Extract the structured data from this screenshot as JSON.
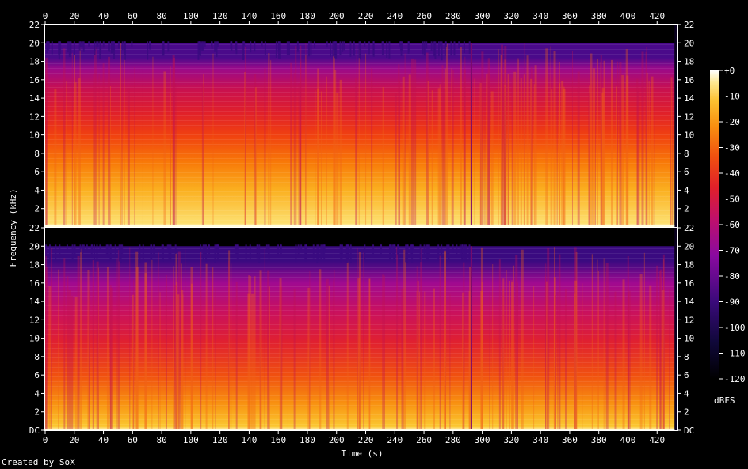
{
  "chart_data": {
    "type": "heatmap",
    "description_type": "spectrogram",
    "xlabel": "Time (s)",
    "ylabel": "Frequency (kHz)",
    "x_ticks": [
      0,
      20,
      40,
      60,
      80,
      100,
      120,
      140,
      160,
      180,
      200,
      220,
      240,
      260,
      280,
      300,
      320,
      340,
      360,
      380,
      400,
      420
    ],
    "xlim": [
      0,
      434
    ],
    "ylim": [
      0,
      22
    ],
    "y_ticks": [
      "DC",
      "2",
      "4",
      "6",
      "8",
      "10",
      "12",
      "14",
      "16",
      "18",
      "20",
      "22"
    ],
    "channels": 2,
    "colorbar": {
      "label": "dBFS",
      "ticks": [
        "+0",
        "-10",
        "-20",
        "-30",
        "-40",
        "-50",
        "-60",
        "-70",
        "-80",
        "-90",
        "-100",
        "-110",
        "-120"
      ],
      "range": [
        -120,
        0
      ],
      "colors": [
        "#000000",
        "#1a0a4a",
        "#4a0a8a",
        "#8a0aa0",
        "#c0106a",
        "#e0202a",
        "#f04010",
        "#f87a08",
        "#fbb020",
        "#fde070",
        "#ffffff"
      ]
    },
    "signal_cutoff_khz": 20,
    "track_boundary_s": 292,
    "end_of_audio_s": 432,
    "credit": "Created by SoX"
  }
}
